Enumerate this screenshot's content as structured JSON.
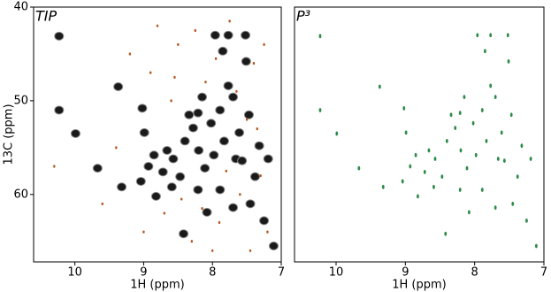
{
  "chart_data": [
    {
      "type": "scatter",
      "title": "TIP",
      "xlabel": "1H (ppm)",
      "ylabel": "13C (ppm)",
      "xlim": [
        10.6,
        7
      ],
      "ylim": [
        67.2,
        40
      ],
      "xticks": [
        10,
        9,
        8,
        7
      ],
      "yticks": [
        40,
        50,
        60
      ],
      "series": [
        {
          "color": "#1a1a1a",
          "x": [
            10.23,
            10.23,
            9.99,
            9.67,
            9.37,
            9.02,
            8.99,
            8.93,
            8.85,
            8.66,
            8.57,
            8.47,
            8.4,
            8.34,
            8.28,
            8.21,
            8.2,
            8.15,
            8.11,
            8.02,
            7.98,
            7.96,
            7.89,
            7.85,
            7.83,
            7.77,
            7.7,
            7.66,
            7.61,
            7.57,
            7.52,
            7.47,
            7.45,
            7.38,
            7.32,
            7.25,
            7.19,
            7.11,
            8.82,
            8.59,
            8.21,
            7.89,
            7.7,
            8.42,
            9.32,
            9.04,
            8.72,
            8.08,
            7.77,
            7.51
          ],
          "y": [
            43.1,
            51.0,
            53.5,
            57.2,
            48.5,
            50.8,
            53.4,
            57.0,
            55.8,
            55.3,
            56.2,
            58.1,
            54.3,
            51.5,
            52.9,
            51.3,
            55.3,
            49.6,
            57.2,
            52.4,
            55.8,
            43.0,
            51.0,
            44.7,
            54.3,
            43.0,
            49.6,
            56.2,
            53.4,
            56.4,
            43.0,
            51.5,
            61.0,
            58.1,
            54.8,
            62.8,
            56.2,
            65.5,
            60.2,
            59.2,
            59.5,
            59.5,
            61.4,
            64.2,
            59.2,
            58.6,
            57.6,
            61.9,
            48.4,
            45.8
          ]
        },
        {
          "color": "#b5541c",
          "x": [
            9.2,
            8.9,
            8.7,
            8.5,
            8.3,
            8.1,
            7.9,
            7.75,
            7.6,
            7.4,
            7.3,
            7.2,
            8.6,
            8.0,
            7.5,
            9.6,
            10.3,
            8.8,
            7.35,
            7.8,
            8.45,
            9.0,
            7.65,
            8.25,
            7.25,
            8.15,
            7.95,
            9.4,
            7.45,
            8.55
          ],
          "y": [
            45,
            47,
            62,
            44,
            65,
            48,
            63,
            41.5,
            60,
            46,
            58,
            64,
            50,
            66,
            52,
            61,
            57,
            42,
            53,
            57.5,
            60.5,
            64,
            49,
            42.5,
            44,
            61.5,
            45.5,
            55,
            66,
            47.5
          ]
        }
      ]
    },
    {
      "type": "scatter",
      "title": "P³",
      "xlabel": "1H (ppm)",
      "xlim": [
        10.6,
        7
      ],
      "ylim": [
        67.2,
        40
      ],
      "xticks": [
        10,
        9,
        8,
        7
      ],
      "series": [
        {
          "color": "#2e8b4a",
          "x": [
            10.23,
            10.23,
            9.99,
            9.67,
            9.37,
            9.02,
            8.99,
            8.93,
            8.85,
            8.66,
            8.57,
            8.47,
            8.4,
            8.34,
            8.28,
            8.21,
            8.2,
            8.15,
            8.11,
            8.02,
            7.98,
            7.96,
            7.89,
            7.85,
            7.83,
            7.77,
            7.7,
            7.66,
            7.61,
            7.57,
            7.52,
            7.47,
            7.45,
            7.38,
            7.32,
            7.25,
            7.19,
            7.11,
            8.82,
            8.59,
            8.21,
            7.89,
            7.7,
            8.42,
            9.32,
            9.04,
            8.72,
            8.08,
            7.77,
            7.51
          ],
          "y": [
            43.1,
            51.0,
            53.5,
            57.2,
            48.5,
            50.8,
            53.4,
            57.0,
            55.8,
            55.3,
            56.2,
            58.1,
            54.3,
            51.5,
            52.9,
            51.3,
            55.3,
            49.6,
            57.2,
            52.4,
            55.8,
            43.0,
            51.0,
            44.7,
            54.3,
            43.0,
            49.6,
            56.2,
            53.4,
            56.4,
            43.0,
            51.5,
            61.0,
            58.1,
            54.8,
            62.8,
            56.2,
            65.5,
            60.2,
            59.2,
            59.5,
            59.5,
            61.4,
            64.2,
            59.2,
            58.6,
            57.6,
            61.9,
            48.4,
            45.8
          ]
        }
      ]
    }
  ]
}
